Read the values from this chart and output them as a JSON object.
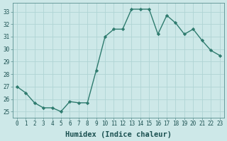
{
  "x": [
    0,
    1,
    2,
    3,
    4,
    5,
    6,
    7,
    8,
    9,
    10,
    11,
    12,
    13,
    14,
    15,
    16,
    17,
    18,
    19,
    20,
    21,
    22,
    23
  ],
  "y": [
    27,
    26.5,
    25.7,
    25.3,
    25.3,
    25.0,
    25.8,
    25.7,
    25.7,
    28.3,
    31.0,
    31.6,
    31.6,
    33.2,
    33.2,
    33.2,
    31.2,
    32.7,
    32.1,
    31.2,
    31.6,
    30.7,
    29.9,
    29.5
  ],
  "line_color": "#2e7b6e",
  "marker": "D",
  "marker_size": 2.2,
  "bg_color": "#cde8e8",
  "grid_color": "#b0d4d4",
  "xlabel": "Humidex (Indice chaleur)",
  "xlim": [
    -0.5,
    23.5
  ],
  "ylim": [
    24.5,
    33.7
  ],
  "yticks": [
    25,
    26,
    27,
    28,
    29,
    30,
    31,
    32,
    33
  ],
  "xticks": [
    0,
    1,
    2,
    3,
    4,
    5,
    6,
    7,
    8,
    9,
    10,
    11,
    12,
    13,
    14,
    15,
    16,
    17,
    18,
    19,
    20,
    21,
    22,
    23
  ],
  "tick_fontsize": 5.5,
  "xlabel_fontsize": 7.5,
  "tick_color": "#1a5050",
  "xlabel_color": "#1a5050",
  "line_width": 1.0,
  "spine_color": "#5a9090"
}
